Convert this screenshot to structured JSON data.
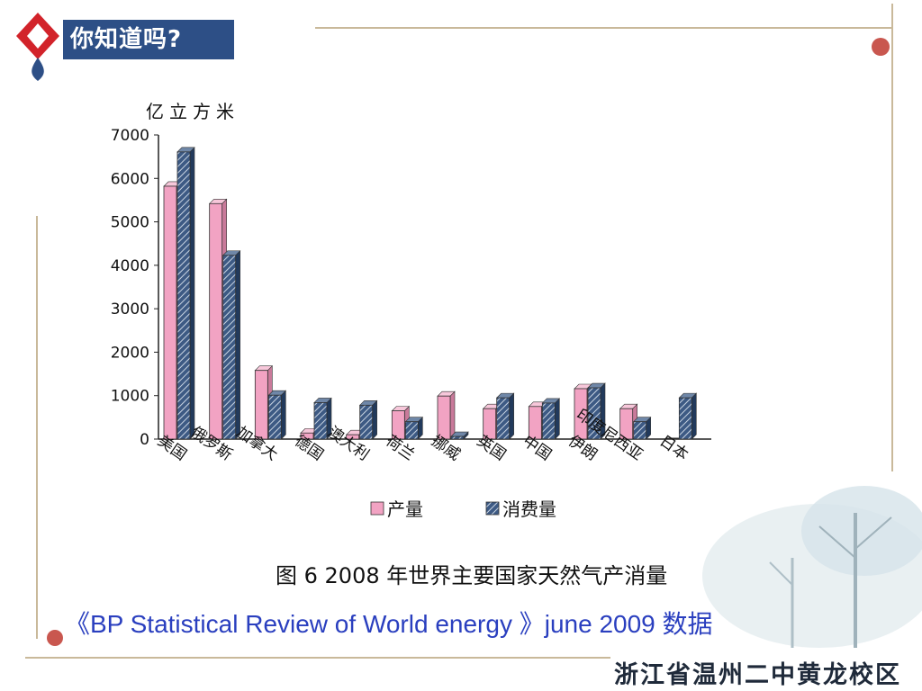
{
  "header": {
    "badge_text": "你知道吗?"
  },
  "chart_data": {
    "type": "bar",
    "ylabel": "亿立方米",
    "title": "图 6  2008 年世界主要国家天然气产消量",
    "categories": [
      "美国",
      "俄罗斯",
      "加拿大",
      "德国",
      "澳大利",
      "荷兰",
      "挪威",
      "英国",
      "中国",
      "伊朗",
      "印度尼西亚",
      "日本"
    ],
    "series": [
      {
        "name": "产量",
        "color": "#f2a3c3",
        "values": [
          5820,
          5420,
          1580,
          140,
          100,
          650,
          990,
          700,
          750,
          1160,
          700,
          0
        ]
      },
      {
        "name": "消费量",
        "color": "#3d5a84",
        "values": [
          6610,
          4230,
          1010,
          840,
          780,
          400,
          60,
          950,
          830,
          1180,
          400,
          950
        ]
      }
    ],
    "yticks": [
      0,
      1000,
      2000,
      3000,
      4000,
      5000,
      6000,
      7000
    ],
    "ylim": [
      0,
      7000
    ],
    "legend_position": "bottom"
  },
  "footer": {
    "source": "《BP Statistical Review of World energy 》june 2009 数据",
    "school": "浙江省温州二中黄龙校区"
  }
}
